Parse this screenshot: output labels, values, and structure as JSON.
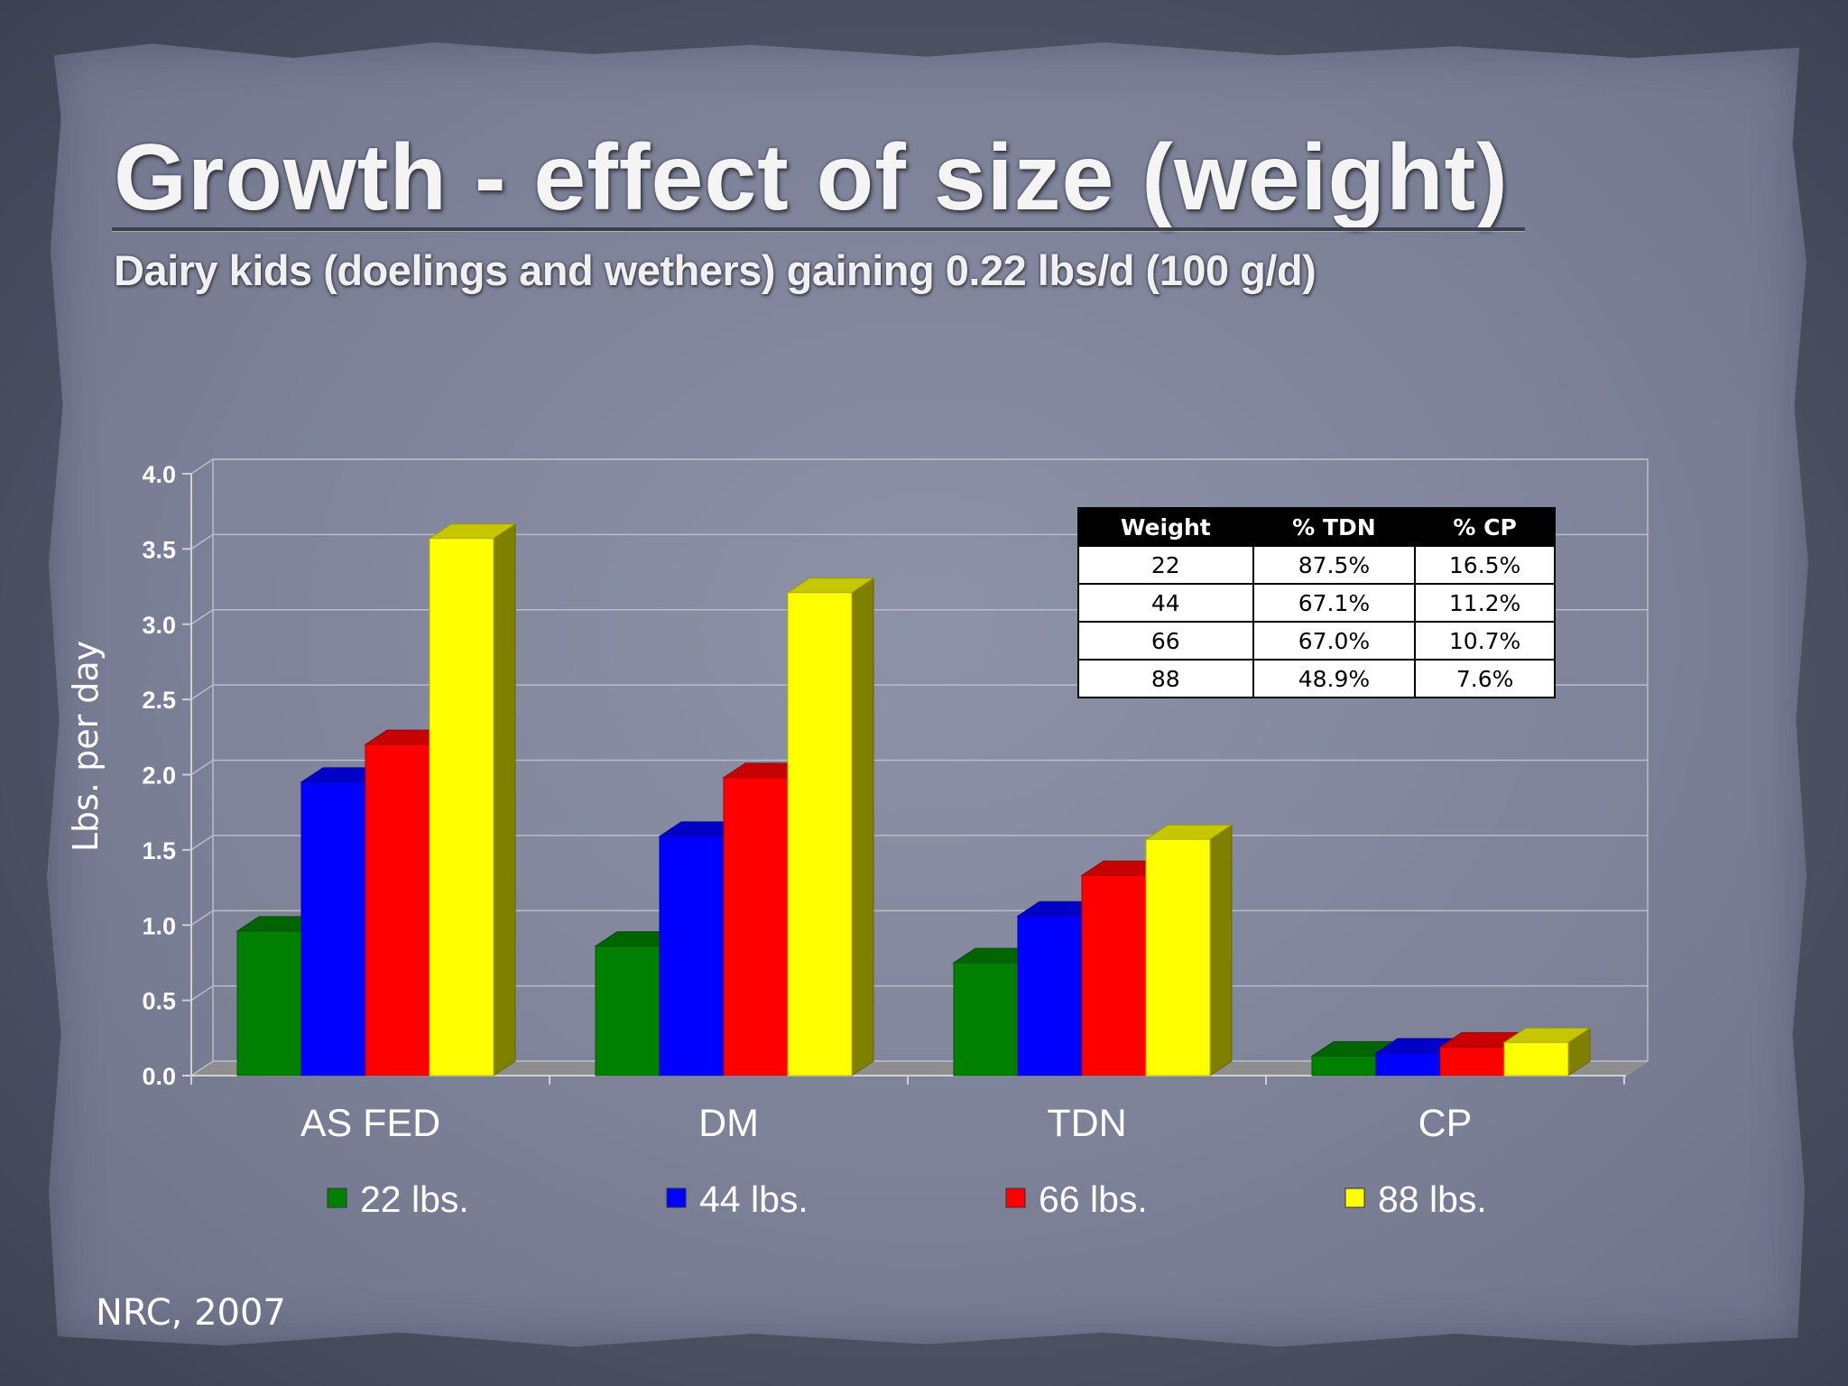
{
  "slide": {
    "title": "Growth - effect of size (weight)",
    "subtitle": "Dairy kids (doelings and wethers)  gaining 0.22 lbs/d (100 g/d)",
    "source": "NRC, 2007"
  },
  "chart_data": {
    "type": "bar",
    "style": "3d-clustered",
    "title": "",
    "xlabel": "",
    "ylabel": "Lbs. per day",
    "ylim": [
      0,
      4.0
    ],
    "yticks": [
      "0.0",
      "0.5",
      "1.0",
      "1.5",
      "2.0",
      "2.5",
      "3.0",
      "3.5",
      "4.0"
    ],
    "grid": true,
    "legend_position": "bottom",
    "categories": [
      "AS FED",
      "DM",
      "TDN",
      "CP"
    ],
    "series": [
      {
        "name": "22 lbs.",
        "color": "#008000",
        "values": [
          0.96,
          0.86,
          0.75,
          0.13
        ]
      },
      {
        "name": "44 lbs.",
        "color": "#0000ff",
        "values": [
          1.95,
          1.59,
          1.06,
          0.15
        ]
      },
      {
        "name": "66 lbs.",
        "color": "#ff0000",
        "values": [
          2.2,
          1.98,
          1.33,
          0.19
        ]
      },
      {
        "name": "88 lbs.",
        "color": "#ffff00",
        "values": [
          3.57,
          3.21,
          1.57,
          0.22
        ]
      }
    ]
  },
  "table": {
    "headers": [
      "Weight",
      "% TDN",
      "% CP"
    ],
    "rows": [
      [
        "22",
        "87.5%",
        "16.5%"
      ],
      [
        "44",
        "67.1%",
        "11.2%"
      ],
      [
        "66",
        "67.0%",
        "10.7%"
      ],
      [
        "88",
        "48.9%",
        "7.6%"
      ]
    ]
  }
}
